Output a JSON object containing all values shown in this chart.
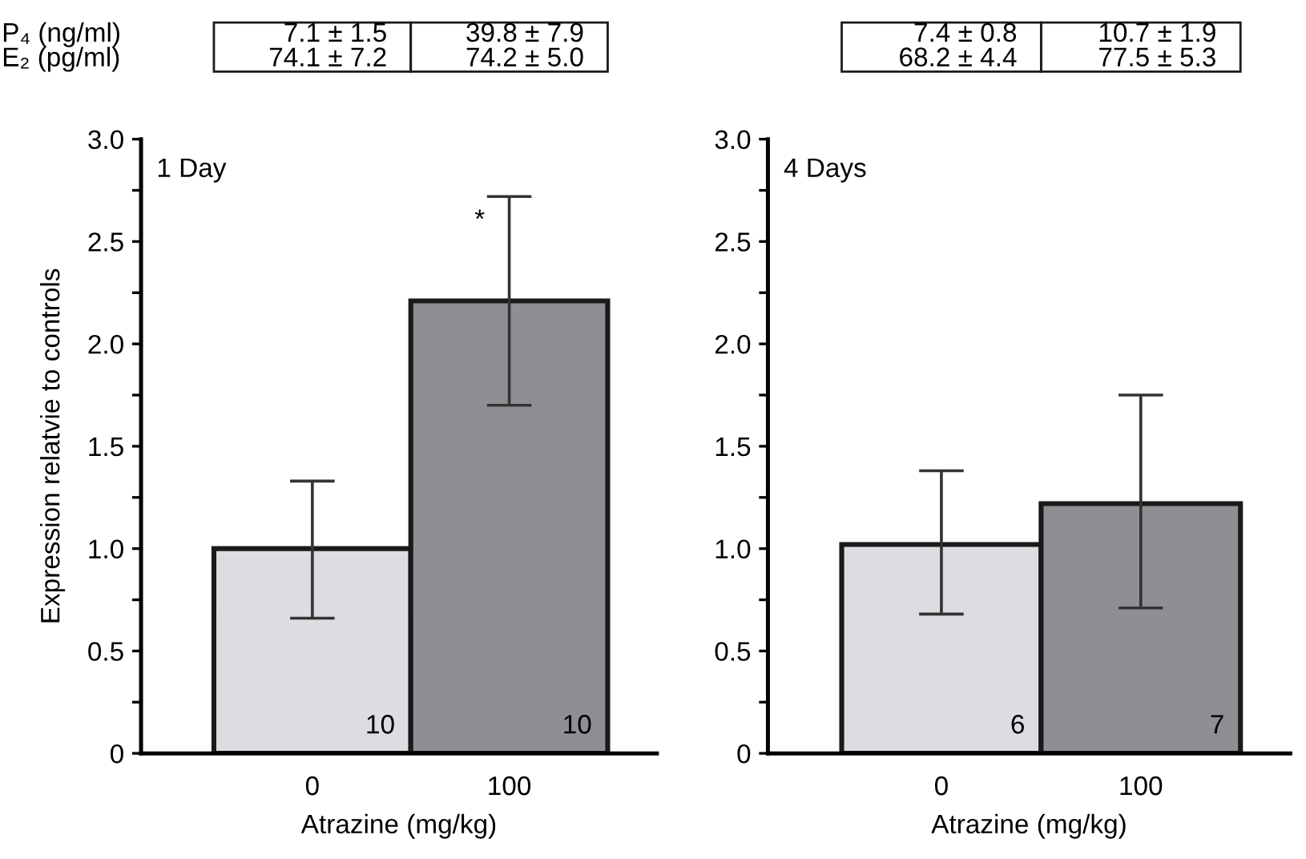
{
  "chart_data": [
    {
      "type": "bar",
      "title": "1 Day",
      "xlabel": "Atrazine (mg/kg)",
      "ylabel": "Expression relatvie to controls",
      "categories": [
        "0",
        "100"
      ],
      "values": [
        1.0,
        2.21
      ],
      "colors": [
        "#dcdde0",
        "#8e8f93"
      ],
      "errors": [
        [
          0.66,
          1.33
        ],
        [
          1.7,
          2.72
        ]
      ],
      "ylim": [
        0,
        3.0
      ],
      "yticks": [
        0,
        {
          "value": 0.25,
          "label": null
        },
        0.5,
        {
          "value": 0.75,
          "label": null
        },
        {
          "value": 1,
          "label": "1.0"
        },
        {
          "value": 1.25,
          "label": null
        },
        1.5,
        {
          "value": 1.75,
          "label": null
        },
        {
          "value": 2,
          "label": "2.0"
        },
        {
          "value": 2.25,
          "label": null
        },
        2.5,
        {
          "value": 2.75,
          "label": null
        },
        {
          "value": 3,
          "label": "3.0"
        }
      ],
      "annotations": [
        "P₄ (ng/ml)",
        "E₂ (pg/ml)",
        "7.1 ± 1.5",
        "39.8 ± 7.9",
        "74.1 ± 7.2",
        "74.2 ± 5.0",
        {
          "text": "*",
          "x": "100",
          "y": 2.6
        },
        {
          "text": "10",
          "x": "0",
          "y": 0
        },
        {
          "text": "10",
          "x": "100",
          "y": 0
        }
      ],
      "legend": false,
      "grid": false
    },
    {
      "type": "bar",
      "title": "4 Days",
      "xlabel": "Atrazine (mg/kg)",
      "categories": [
        "0",
        "100"
      ],
      "values": [
        1.02,
        1.22
      ],
      "colors": [
        "#dcdde0",
        "#8e8f93"
      ],
      "errors": [
        [
          0.68,
          1.38
        ],
        [
          0.71,
          1.75
        ]
      ],
      "ylim": [
        0,
        3.0
      ],
      "yticks": [
        0,
        {
          "value": 0.25,
          "label": null
        },
        0.5,
        {
          "value": 0.75,
          "label": null
        },
        {
          "value": 1,
          "label": "1.0"
        },
        {
          "value": 1.25,
          "label": null
        },
        1.5,
        {
          "value": 1.75,
          "label": null
        },
        {
          "value": 2,
          "label": "2.0"
        },
        {
          "value": 2.25,
          "label": null
        },
        2.5,
        {
          "value": 2.75,
          "label": null
        },
        {
          "value": 3,
          "label": "3.0"
        }
      ],
      "annotations": [
        "7.4 ± 0.8",
        "10.7 ± 1.9",
        "68.2 ± 4.4",
        "77.5 ± 5.3",
        {
          "text": "6",
          "x": "0",
          "y": 0
        },
        {
          "text": "7",
          "x": "100",
          "y": 0
        }
      ],
      "legend": false,
      "grid": false
    }
  ]
}
